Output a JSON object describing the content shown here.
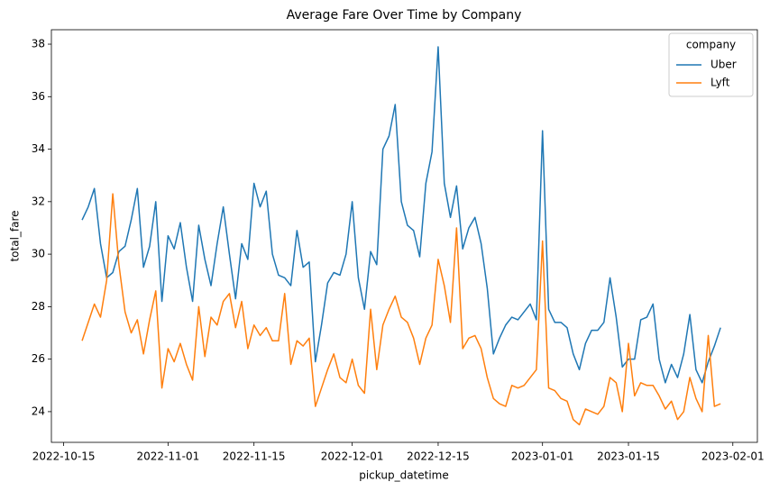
{
  "chart_data": {
    "type": "line",
    "title": "Average Fare Over Time by Company",
    "xlabel": "pickup_datetime",
    "ylabel": "total_fare",
    "legend_title": "company",
    "legend_loc": "upper right",
    "grid": false,
    "x": [
      "2022-10-18",
      "2022-10-19",
      "2022-10-20",
      "2022-10-21",
      "2022-10-22",
      "2022-10-23",
      "2022-10-24",
      "2022-10-25",
      "2022-10-26",
      "2022-10-27",
      "2022-10-28",
      "2022-10-29",
      "2022-10-30",
      "2022-10-31",
      "2022-11-01",
      "2022-11-02",
      "2022-11-03",
      "2022-11-04",
      "2022-11-05",
      "2022-11-06",
      "2022-11-07",
      "2022-11-08",
      "2022-11-09",
      "2022-11-10",
      "2022-11-11",
      "2022-11-12",
      "2022-11-13",
      "2022-11-14",
      "2022-11-15",
      "2022-11-16",
      "2022-11-17",
      "2022-11-18",
      "2022-11-19",
      "2022-11-20",
      "2022-11-21",
      "2022-11-22",
      "2022-11-23",
      "2022-11-24",
      "2022-11-25",
      "2022-11-26",
      "2022-11-27",
      "2022-11-28",
      "2022-11-29",
      "2022-11-30",
      "2022-12-01",
      "2022-12-02",
      "2022-12-03",
      "2022-12-04",
      "2022-12-05",
      "2022-12-06",
      "2022-12-07",
      "2022-12-08",
      "2022-12-09",
      "2022-12-10",
      "2022-12-11",
      "2022-12-12",
      "2022-12-13",
      "2022-12-14",
      "2022-12-15",
      "2022-12-16",
      "2022-12-17",
      "2022-12-18",
      "2022-12-19",
      "2022-12-20",
      "2022-12-21",
      "2022-12-22",
      "2022-12-23",
      "2022-12-24",
      "2022-12-25",
      "2022-12-26",
      "2022-12-27",
      "2022-12-28",
      "2022-12-29",
      "2022-12-30",
      "2022-12-31",
      "2023-01-01",
      "2023-01-02",
      "2023-01-03",
      "2023-01-04",
      "2023-01-05",
      "2023-01-06",
      "2023-01-07",
      "2023-01-08",
      "2023-01-09",
      "2023-01-10",
      "2023-01-11",
      "2023-01-12",
      "2023-01-13",
      "2023-01-14",
      "2023-01-15",
      "2023-01-16",
      "2023-01-17",
      "2023-01-18",
      "2023-01-19",
      "2023-01-20",
      "2023-01-21",
      "2023-01-22",
      "2023-01-23",
      "2023-01-24",
      "2023-01-25",
      "2023-01-26",
      "2023-01-27",
      "2023-01-28",
      "2023-01-29",
      "2023-01-30"
    ],
    "series": [
      {
        "name": "Uber",
        "color": "#1f77b4",
        "values": [
          31.3,
          31.8,
          32.5,
          30.4,
          29.1,
          29.3,
          30.1,
          30.3,
          31.3,
          32.5,
          29.5,
          30.3,
          32.0,
          28.2,
          30.7,
          30.2,
          31.2,
          29.5,
          28.2,
          31.1,
          29.8,
          28.8,
          30.4,
          31.8,
          30.0,
          28.3,
          30.4,
          29.8,
          32.7,
          31.8,
          32.4,
          30.0,
          29.2,
          29.1,
          28.8,
          30.9,
          29.5,
          29.7,
          25.9,
          27.3,
          28.9,
          29.3,
          29.2,
          30.0,
          32.0,
          29.1,
          27.9,
          30.1,
          29.6,
          34.0,
          34.5,
          35.7,
          32.0,
          31.1,
          30.9,
          29.9,
          32.7,
          33.9,
          37.9,
          32.7,
          31.4,
          32.6,
          30.2,
          31.0,
          31.4,
          30.4,
          28.7,
          26.2,
          26.8,
          27.3,
          27.6,
          27.5,
          27.8,
          28.1,
          27.5,
          34.7,
          27.9,
          27.4,
          27.4,
          27.2,
          26.2,
          25.6,
          26.6,
          27.1,
          27.1,
          27.4,
          29.1,
          27.6,
          25.7,
          26.0,
          26.0,
          27.5,
          27.6,
          28.1,
          26.0,
          25.1,
          25.8,
          25.3,
          26.2,
          27.7,
          25.6,
          25.1,
          25.9,
          26.5,
          27.2
        ]
      },
      {
        "name": "Lyft",
        "color": "#ff7f0e",
        "values": [
          26.7,
          27.4,
          28.1,
          27.6,
          29.0,
          32.3,
          29.6,
          27.8,
          27.0,
          27.5,
          26.2,
          27.5,
          28.6,
          24.9,
          26.4,
          25.9,
          26.6,
          25.8,
          25.2,
          28.0,
          26.1,
          27.6,
          27.3,
          28.2,
          28.5,
          27.2,
          28.2,
          26.4,
          27.3,
          26.9,
          27.2,
          26.7,
          26.7,
          28.5,
          25.8,
          26.7,
          26.5,
          26.8,
          24.2,
          24.9,
          25.6,
          26.2,
          25.3,
          25.1,
          26.0,
          25.0,
          24.7,
          27.9,
          25.6,
          27.3,
          27.9,
          28.4,
          27.6,
          27.4,
          26.8,
          25.8,
          26.8,
          27.3,
          29.8,
          28.8,
          27.4,
          31.0,
          26.4,
          26.8,
          26.9,
          26.4,
          25.3,
          24.5,
          24.3,
          24.2,
          25.0,
          24.9,
          25.0,
          25.3,
          25.6,
          30.5,
          24.9,
          24.8,
          24.5,
          24.4,
          23.7,
          23.5,
          24.1,
          24.0,
          23.9,
          24.2,
          25.3,
          25.1,
          24.0,
          26.6,
          24.6,
          25.1,
          25.0,
          25.0,
          24.6,
          24.1,
          24.4,
          23.7,
          24.0,
          25.3,
          24.5,
          24.0,
          26.9,
          24.2,
          24.3
        ]
      }
    ],
    "xlim": [
      "2022-10-13",
      "2023-02-05"
    ],
    "xticks": [
      "2022-10-15",
      "2022-11-01",
      "2022-11-15",
      "2022-12-01",
      "2022-12-15",
      "2023-01-01",
      "2023-01-15",
      "2023-02-01"
    ],
    "ylim": [
      22.83,
      38.55
    ],
    "yticks": [
      24,
      26,
      28,
      30,
      32,
      34,
      36,
      38
    ]
  }
}
